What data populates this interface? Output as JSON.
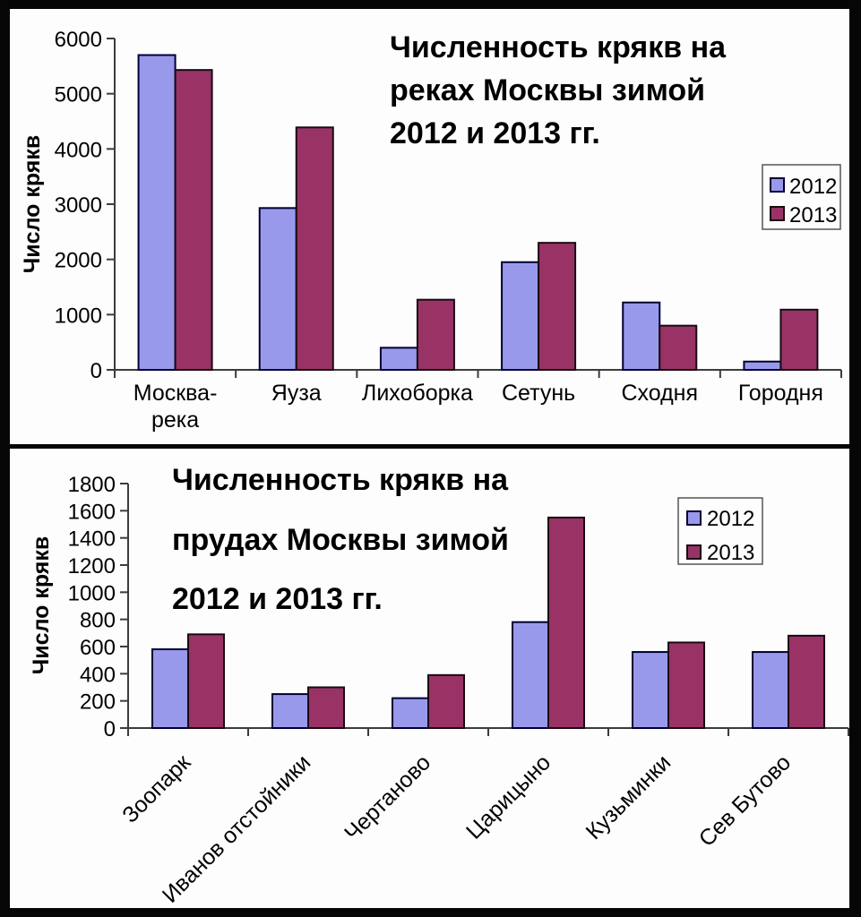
{
  "page": {
    "background": "#060606",
    "panel_background": "#FDFDFD"
  },
  "colors": {
    "bar_2012_fill": "#9999EC",
    "bar_2012_stroke": "#000033",
    "bar_2013_fill": "#993366",
    "bar_2013_stroke": "#1A0A12",
    "axis": "#3C3C3C",
    "text": "#000000",
    "legend_border": "#555555",
    "legend_fill": "#FDFDFD"
  },
  "chart_data": [
    {
      "type": "bar",
      "title_lines": [
        "Численность крякв на",
        "реках Москвы зимой",
        "2012 и 2013 гг."
      ],
      "ylabel": "Число крякв",
      "categories": [
        [
          "Москва-",
          "река"
        ],
        "Яуза",
        "Лихоборка",
        "Сетунь",
        "Сходня",
        "Городня"
      ],
      "series": [
        {
          "name": "2012",
          "values": [
            5700,
            2930,
            400,
            1950,
            1220,
            150
          ]
        },
        {
          "name": "2013",
          "values": [
            5430,
            4390,
            1270,
            2300,
            800,
            1090
          ]
        }
      ],
      "ylim": [
        0,
        6000
      ],
      "ytick_step": 1000,
      "grid": false,
      "legend_position": "right",
      "x_label_rotation": 0
    },
    {
      "type": "bar",
      "title_lines": [
        "Численность крякв на",
        "прудах Москвы зимой",
        "2012 и 2013 гг."
      ],
      "ylabel": "Число крякв",
      "categories": [
        "Зоопарк",
        "Иванов отстойники",
        "Чертаново",
        "Царицыно",
        "Кузьминки",
        "Сев Бутово"
      ],
      "series": [
        {
          "name": "2012",
          "values": [
            580,
            250,
            220,
            780,
            560,
            560
          ]
        },
        {
          "name": "2013",
          "values": [
            690,
            300,
            390,
            1550,
            630,
            680
          ]
        }
      ],
      "ylim": [
        0,
        1800
      ],
      "ytick_step": 200,
      "grid": false,
      "legend_position": "right-top",
      "x_label_rotation": 45
    }
  ]
}
